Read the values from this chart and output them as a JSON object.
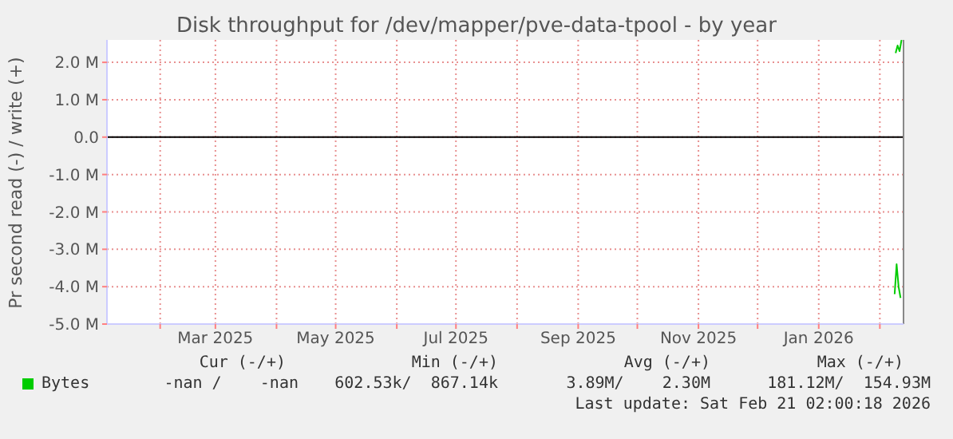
{
  "chart_data": {
    "type": "line",
    "title": "Disk throughput for /dev/mapper/pve-data-tpool - by year",
    "ylabel": "Pr second read (-) / write (+)",
    "xlim": [
      "2025-01-05",
      "2026-02-13"
    ],
    "xticks": [
      {
        "value": "2025-02-01",
        "label": null
      },
      {
        "value": "2025-03-01",
        "label": "Mar 2025"
      },
      {
        "value": "2025-04-01",
        "label": null
      },
      {
        "value": "2025-05-01",
        "label": "May 2025"
      },
      {
        "value": "2025-06-01",
        "label": null
      },
      {
        "value": "2025-07-01",
        "label": "Jul 2025"
      },
      {
        "value": "2025-08-01",
        "label": null
      },
      {
        "value": "2025-09-01",
        "label": "Sep 2025"
      },
      {
        "value": "2025-10-01",
        "label": null
      },
      {
        "value": "2025-11-01",
        "label": "Nov 2025"
      },
      {
        "value": "2025-12-01",
        "label": null
      },
      {
        "value": "2026-01-01",
        "label": "Jan 2026"
      },
      {
        "value": "2026-02-01",
        "label": null
      }
    ],
    "ylim": [
      -5000000,
      2600000
    ],
    "yticks": [
      {
        "value": -5000000,
        "label": "-5.0 M"
      },
      {
        "value": -4000000,
        "label": "-4.0 M"
      },
      {
        "value": -3000000,
        "label": "-3.0 M"
      },
      {
        "value": -2000000,
        "label": "-2.0 M"
      },
      {
        "value": -1000000,
        "label": "-1.0 M"
      },
      {
        "value": 0,
        "label": "0.0"
      },
      {
        "value": 1000000,
        "label": "1.0 M"
      },
      {
        "value": 2000000,
        "label": "2.0 M"
      }
    ],
    "grid": true,
    "legend": "bottom",
    "marker": "none",
    "line_style": "solid",
    "series": [
      {
        "name": "Bytes",
        "color": "#00cc00",
        "x": [
          "2026-02-09",
          "2026-02-10",
          "2026-02-11",
          "2026-02-12"
        ],
        "values": [
          2250000,
          2450000,
          2300000,
          2600000
        ]
      },
      {
        "color": "#00cb00",
        "x": [
          "2026-02-08T12:00",
          "2026-02-09T12:00",
          "2026-02-10T12:00",
          "2026-02-11T12:00"
        ],
        "values": [
          -4200000,
          -3400000,
          -4000000,
          -4300000
        ]
      }
    ],
    "ref_lines": [
      {
        "axis": "y",
        "value": 0,
        "color": "#000000"
      },
      {
        "axis": "x",
        "value": "2026-02-13",
        "color": "#888888"
      }
    ],
    "annotations": [
      "Cur (-/+)",
      "Min (-/+)",
      "Avg (-/+)",
      "Max (-/+)",
      "-nan /    -nan",
      "602.53k/  867.14k",
      "3.89M/    2.30M",
      "181.12M/  154.93M",
      "Last update: Sat Feb 21 02:00:18 2026"
    ]
  }
}
